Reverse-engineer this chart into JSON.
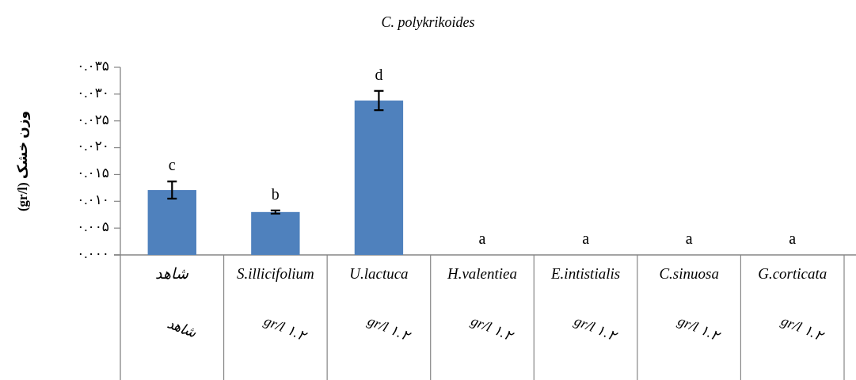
{
  "chart_data": {
    "type": "bar",
    "title": "C. polykrikoides",
    "ylabel": "وزن خشک (gr/l)",
    "categories": [
      "شاهد",
      "S.illicifolium",
      "U.lactuca",
      "H.valentiea",
      "E.intistialis",
      "C.sinuosa",
      "G.corticata"
    ],
    "values": [
      0.0121,
      0.008,
      0.0288,
      0,
      0,
      0,
      0
    ],
    "errors": [
      0.0016,
      0.0003,
      0.0018,
      null,
      null,
      null,
      null
    ],
    "color": "#4f81bd",
    "ylim": [
      0,
      0.035
    ],
    "yticks": [
      {
        "value": 0,
        "label": "۰.۰۰۰"
      },
      {
        "value": 0.005,
        "label": "۰.۰۰۵"
      },
      {
        "value": 0.01,
        "label": "۰.۰۱۰"
      },
      {
        "value": 0.015,
        "label": "۰.۰۱۵"
      },
      {
        "value": 0.02,
        "label": "۰.۰۲۰"
      },
      {
        "value": 0.025,
        "label": "۰.۰۲۵"
      },
      {
        "value": 0.03,
        "label": "۰.۰۳۰"
      },
      {
        "value": 0.035,
        "label": "۰.۰۳۵"
      }
    ],
    "grid": false,
    "annotations": [
      "c",
      "b",
      "d",
      "a",
      "a",
      "a",
      "a",
      "شاهد",
      "gr/l ۱.۲",
      "gr/l ۱.۲",
      "gr/l ۱.۲",
      "gr/l ۱.۲",
      "gr/l ۱.۲",
      "gr/l ۱.۲"
    ]
  }
}
